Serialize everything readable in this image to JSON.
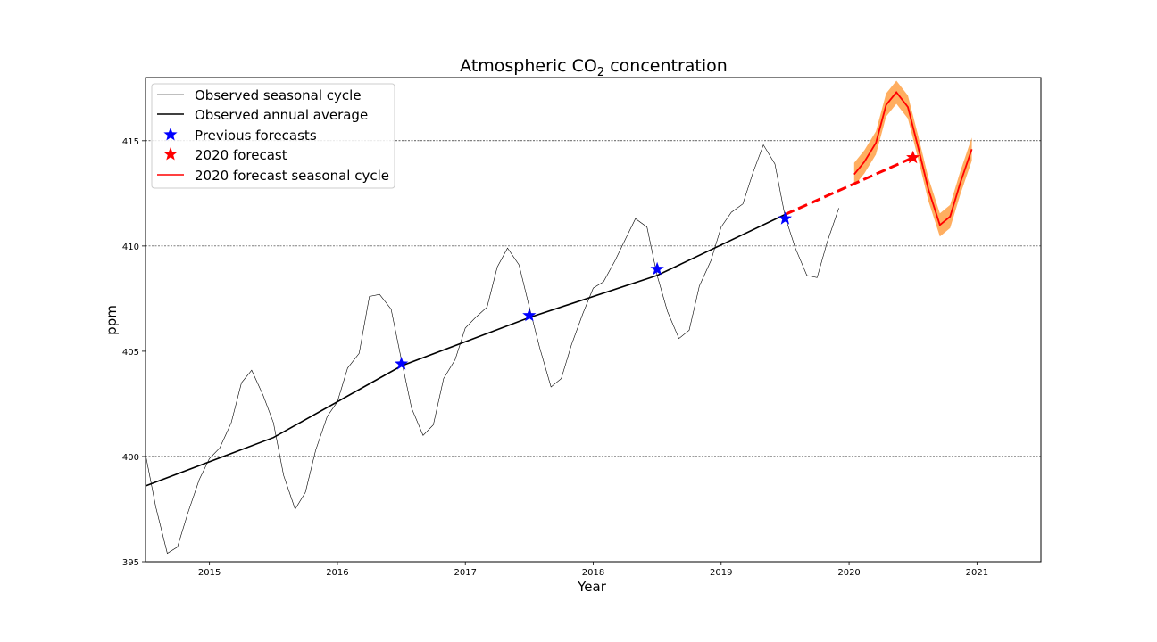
{
  "chart_data": {
    "type": "line",
    "title_main": "Atmospheric CO",
    "title_sub": "2",
    "title_rest": " concentration",
    "xlabel": "Year",
    "ylabel": "ppm",
    "xlim": [
      2014.5,
      2021.5
    ],
    "ylim": [
      395,
      418
    ],
    "xticks": [
      2015,
      2016,
      2017,
      2018,
      2019,
      2020,
      2021
    ],
    "yticks": [
      395,
      400,
      405,
      410,
      415
    ],
    "grid_y": [
      400,
      410,
      415
    ],
    "legend_position": "upper-left",
    "colors": {
      "seasonal": "#000000",
      "annual": "#000000",
      "previous": "#0000ff",
      "forecast_star": "#ff0000",
      "forecast_line": "#ff0000",
      "forecast_band": "#ffa54f"
    },
    "series": [
      {
        "name": "Observed seasonal cycle",
        "x": [
          2014.5,
          2014.58,
          2014.67,
          2014.75,
          2014.83,
          2014.92,
          2015.0,
          2015.08,
          2015.17,
          2015.25,
          2015.33,
          2015.42,
          2015.5,
          2015.58,
          2015.67,
          2015.75,
          2015.83,
          2015.92,
          2016.0,
          2016.08,
          2016.17,
          2016.25,
          2016.33,
          2016.42,
          2016.5,
          2016.58,
          2016.67,
          2016.75,
          2016.83,
          2016.92,
          2017.0,
          2017.08,
          2017.17,
          2017.25,
          2017.33,
          2017.42,
          2017.5,
          2017.58,
          2017.67,
          2017.75,
          2017.83,
          2017.92,
          2018.0,
          2018.08,
          2018.17,
          2018.25,
          2018.33,
          2018.42,
          2018.5,
          2018.58,
          2018.67,
          2018.75,
          2018.83,
          2018.92,
          2019.0,
          2019.08,
          2019.17,
          2019.25,
          2019.33,
          2019.42,
          2019.5,
          2019.58,
          2019.67,
          2019.75,
          2019.83,
          2019.92
        ],
        "y": [
          400.1,
          397.6,
          395.4,
          395.7,
          397.3,
          398.9,
          399.9,
          400.4,
          401.6,
          403.5,
          404.1,
          402.9,
          401.6,
          399.1,
          397.5,
          398.3,
          400.3,
          401.9,
          402.6,
          404.2,
          404.9,
          407.6,
          407.7,
          407.0,
          404.6,
          402.3,
          401.0,
          401.5,
          403.7,
          404.6,
          406.1,
          406.6,
          407.1,
          409.0,
          409.9,
          409.1,
          407.1,
          405.2,
          403.3,
          403.7,
          405.3,
          406.8,
          408.0,
          408.3,
          409.3,
          410.3,
          411.3,
          410.9,
          408.6,
          406.9,
          405.6,
          406.0,
          408.1,
          409.3,
          410.9,
          411.6,
          412.0,
          413.5,
          414.8,
          413.9,
          411.4,
          409.9,
          408.6,
          408.5,
          410.2,
          411.8
        ]
      },
      {
        "name": "Observed annual average",
        "x": [
          2014.5,
          2015.5,
          2016.5,
          2017.5,
          2018.5,
          2019.5
        ],
        "y": [
          398.6,
          400.9,
          404.3,
          406.6,
          408.6,
          411.5
        ]
      },
      {
        "name": "Previous forecasts",
        "x": [
          2016.5,
          2017.5,
          2018.5,
          2019.5
        ],
        "y": [
          404.4,
          406.7,
          408.9,
          411.3
        ]
      },
      {
        "name": "2020 forecast",
        "x": [
          2020.5
        ],
        "y": [
          414.2
        ]
      },
      {
        "name": "2020 forecast seasonal cycle",
        "x": [
          2020.04,
          2020.12,
          2020.21,
          2020.29,
          2020.37,
          2020.46,
          2020.54,
          2020.62,
          2020.71,
          2020.79,
          2020.87,
          2020.96
        ],
        "y": [
          413.4,
          414.0,
          414.9,
          416.7,
          417.3,
          416.6,
          414.7,
          412.7,
          411.0,
          411.4,
          413.0,
          414.6
        ],
        "band": 0.55
      }
    ],
    "forecast_trend": {
      "x": [
        2019.5,
        2020.5
      ],
      "y": [
        411.5,
        414.2
      ]
    }
  }
}
